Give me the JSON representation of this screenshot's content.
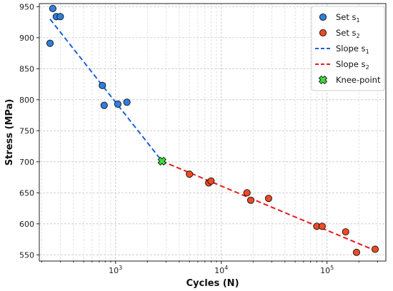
{
  "chart_data": {
    "type": "scatter",
    "xlabel": "Cycles (N)",
    "ylabel": "Stress (MPa)",
    "x_scale": "log",
    "xlim": [
      190,
      360000
    ],
    "ylim": [
      540,
      955
    ],
    "grid": true,
    "legend_position": "top-right",
    "y_ticks": [
      550,
      600,
      650,
      700,
      750,
      800,
      850,
      900,
      950
    ],
    "x_ticks": [
      {
        "value": 1000,
        "base": "10",
        "exp": "3"
      },
      {
        "value": 10000,
        "base": "10",
        "exp": "4"
      },
      {
        "value": 100000,
        "base": "10",
        "exp": "5"
      }
    ],
    "series": [
      {
        "name": "Set s",
        "sub": "1",
        "kind": "points",
        "color": "#2f7fe0",
        "points": [
          {
            "x": 240,
            "y": 891
          },
          {
            "x": 255,
            "y": 947
          },
          {
            "x": 275,
            "y": 934
          },
          {
            "x": 300,
            "y": 934
          },
          {
            "x": 750,
            "y": 823
          },
          {
            "x": 780,
            "y": 791
          },
          {
            "x": 1050,
            "y": 793
          },
          {
            "x": 1280,
            "y": 796
          }
        ]
      },
      {
        "name": "Set s",
        "sub": "2",
        "kind": "points",
        "color": "#f04a24",
        "points": [
          {
            "x": 5000,
            "y": 680
          },
          {
            "x": 7600,
            "y": 666
          },
          {
            "x": 8000,
            "y": 669
          },
          {
            "x": 17500,
            "y": 650
          },
          {
            "x": 19000,
            "y": 638
          },
          {
            "x": 28000,
            "y": 641
          },
          {
            "x": 80000,
            "y": 596
          },
          {
            "x": 90000,
            "y": 596
          },
          {
            "x": 150000,
            "y": 587
          },
          {
            "x": 190000,
            "y": 554
          },
          {
            "x": 285000,
            "y": 559
          }
        ]
      },
      {
        "name": "Slope s",
        "sub": "1",
        "kind": "line",
        "color": "#1f5fd6",
        "points": [
          {
            "x": 240,
            "y": 930
          },
          {
            "x": 2750,
            "y": 701
          }
        ]
      },
      {
        "name": "Slope s",
        "sub": "2",
        "kind": "line",
        "color": "#e8191d",
        "points": [
          {
            "x": 2750,
            "y": 701
          },
          {
            "x": 285000,
            "y": 557
          }
        ]
      },
      {
        "name": "Knee-point",
        "sub": "",
        "kind": "marker",
        "color": "#3ddc3d",
        "points": [
          {
            "x": 2750,
            "y": 701
          }
        ]
      }
    ]
  }
}
